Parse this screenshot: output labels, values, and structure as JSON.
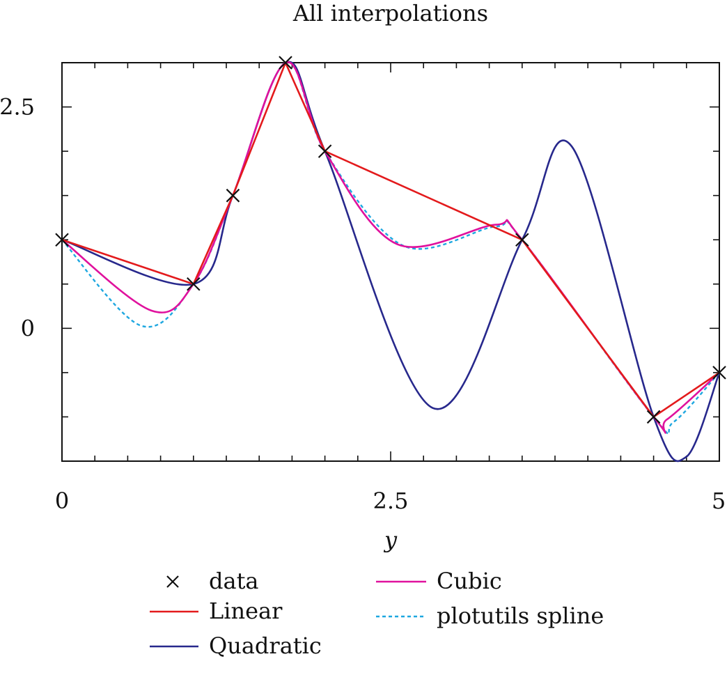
{
  "chart_data": {
    "type": "line",
    "title": "All interpolations",
    "xlabel": "y",
    "ylabel": "",
    "xlim": [
      0,
      5
    ],
    "ylim": [
      -1.5,
      3.0
    ],
    "xticks": [
      {
        "value": 0,
        "label": "0"
      },
      {
        "value": 2.5,
        "label": "2.5"
      },
      {
        "value": 5,
        "label": "5"
      }
    ],
    "yticks": [
      {
        "value": 0,
        "label": "0"
      },
      {
        "value": 2.5,
        "label": "2.5"
      }
    ],
    "x_minor_step": 0.25,
    "y_minor_step": 0.5,
    "grid": false,
    "legend_position": "bottom",
    "data_points": {
      "x": [
        0,
        1,
        1.3,
        1.7,
        2,
        3.5,
        4.5,
        5
      ],
      "y": [
        1.0,
        0.5,
        1.5,
        3.0,
        2.0,
        1.0,
        -1.0,
        -0.5
      ]
    },
    "series": [
      {
        "name": "data",
        "style": "markers",
        "color": "#111111"
      },
      {
        "name": "Linear",
        "style": "solid",
        "color": "#e31a1c"
      },
      {
        "name": "Quadratic",
        "style": "solid",
        "color": "#27288c",
        "control_points": {
          "x": [
            0,
            1,
            1.3,
            1.7,
            2,
            2.82,
            3.5,
            3.88,
            4.5,
            4.75,
            5
          ],
          "y": [
            1.0,
            0.5,
            1.5,
            3.0,
            2.0,
            -0.9,
            1.0,
            2.05,
            -1.0,
            -1.45,
            -0.5
          ]
        }
      },
      {
        "name": "Cubic",
        "style": "solid",
        "color": "#e0119d",
        "control_points": {
          "x": [
            0,
            0.68,
            1,
            1.3,
            1.7,
            2,
            2.55,
            3.3,
            3.5,
            4.5,
            4.6,
            5
          ],
          "y": [
            1.0,
            0.2,
            0.5,
            1.5,
            3.0,
            2.0,
            0.95,
            1.17,
            1.0,
            -1.0,
            -1.03,
            -0.5
          ]
        }
      },
      {
        "name": "plotutils spline",
        "style": "dashed",
        "color": "#1ea7e0",
        "control_points": {
          "x": [
            0,
            0.6,
            1,
            1.3,
            1.7,
            2,
            2.6,
            3.3,
            3.5,
            4.5,
            4.65,
            5
          ],
          "y": [
            1.0,
            0.03,
            0.5,
            1.5,
            3.0,
            2.0,
            0.93,
            1.15,
            1.0,
            -1.0,
            -1.06,
            -0.5
          ]
        }
      }
    ]
  }
}
